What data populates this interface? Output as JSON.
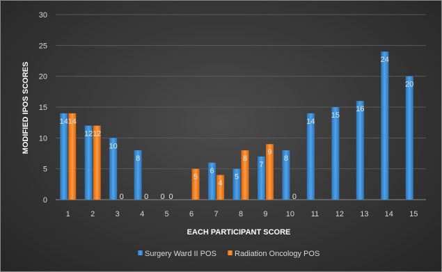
{
  "chart_data": {
    "type": "bar",
    "title": "",
    "xlabel": "EACH PARTICIPANT SCORE",
    "ylabel": "MODIFIED IPOS SCORES",
    "ylim": [
      0,
      30
    ],
    "yticks": [
      0,
      5,
      10,
      15,
      20,
      25,
      30
    ],
    "grid": true,
    "legend_position": "bottom",
    "categories": [
      "1",
      "2",
      "3",
      "4",
      "5",
      "6",
      "7",
      "8",
      "9",
      "10",
      "11",
      "12",
      "13",
      "14",
      "15"
    ],
    "series": [
      {
        "name": "Surgery Ward II POS",
        "color": "#3a8fd9",
        "values": [
          14,
          12,
          10,
          8,
          0,
          0,
          6,
          5,
          7,
          8,
          14,
          15,
          16,
          24,
          20
        ],
        "labels": [
          "14",
          "12",
          "10",
          "8",
          "0",
          "",
          "6",
          "5",
          "7",
          "8",
          "14",
          "15",
          "16",
          "24",
          "20"
        ]
      },
      {
        "name": "Radiation Oncology POS",
        "color": "#f07b1f",
        "values": [
          14,
          12,
          0,
          0,
          0,
          5,
          4,
          8,
          9,
          0,
          null,
          null,
          null,
          null,
          null
        ],
        "labels": [
          "14",
          "12",
          "0",
          "0",
          "0",
          "5",
          "4",
          "8",
          "9",
          "0",
          "",
          "",
          "",
          "",
          ""
        ]
      }
    ]
  }
}
